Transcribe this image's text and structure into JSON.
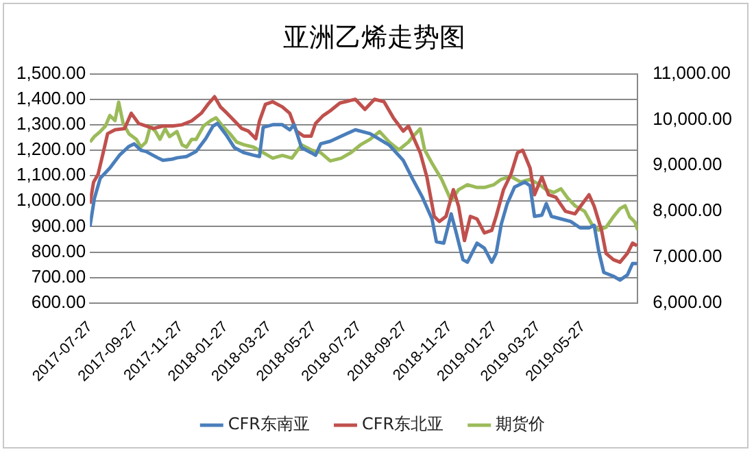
{
  "chart_data": {
    "type": "line",
    "title": "亚洲乙烯走势图",
    "xlim": [
      "2017-07-27",
      "2019-08-09"
    ],
    "xticks": [
      "2017-07-27",
      "2017-09-27",
      "2017-11-27",
      "2018-01-27",
      "2018-03-27",
      "2018-05-27",
      "2018-07-27",
      "2018-09-27",
      "2018-11-27",
      "2019-01-27",
      "2019-03-27",
      "2019-05-27"
    ],
    "ylim": [
      600,
      1500
    ],
    "yticks": [
      {
        "value": 600,
        "label": "600.00"
      },
      {
        "value": 700,
        "label": "700.00"
      },
      {
        "value": 800,
        "label": "800.00"
      },
      {
        "value": 900,
        "label": "900.00"
      },
      {
        "value": 1000,
        "label": "1,000.00"
      },
      {
        "value": 1100,
        "label": "1,100.00"
      },
      {
        "value": 1200,
        "label": "1,200.00"
      },
      {
        "value": 1300,
        "label": "1,300.00"
      },
      {
        "value": 1400,
        "label": "1,400.00"
      },
      {
        "value": 1500,
        "label": "1,500.00"
      }
    ],
    "y2lim": [
      6000,
      11000
    ],
    "y2ticks": [
      {
        "value": 6000,
        "label": "6,000.00"
      },
      {
        "value": 7000,
        "label": "7,000.00"
      },
      {
        "value": 8000,
        "label": "8,000.00"
      },
      {
        "value": 9000,
        "label": "9,000.00"
      },
      {
        "value": 10000,
        "label": "10,000.00"
      },
      {
        "value": 11000,
        "label": "11,000.00"
      }
    ],
    "grid": "y",
    "legend": "bottom",
    "marker": "none",
    "line_style": "solid",
    "series": [
      {
        "name": "CFR东南亚",
        "color": "#4a7ebb",
        "x": [
          "2017-07-27",
          "2017-08-02",
          "2017-08-10",
          "2017-08-23",
          "2017-09-05",
          "2017-09-18",
          "2017-09-25",
          "2017-10-04",
          "2017-10-11",
          "2017-10-27",
          "2017-11-03",
          "2017-11-16",
          "2017-11-22",
          "2017-12-05",
          "2017-12-18",
          "2017-12-31",
          "2018-01-10",
          "2018-01-16",
          "2018-01-29",
          "2018-02-08",
          "2018-02-21",
          "2018-03-06",
          "2018-03-14",
          "2018-03-19",
          "2018-04-01",
          "2018-04-14",
          "2018-04-24",
          "2018-04-30",
          "2018-05-10",
          "2018-05-23",
          "2018-05-29",
          "2018-06-05",
          "2018-06-18",
          "2018-07-03",
          "2018-07-22",
          "2018-08-11",
          "2018-09-06",
          "2018-09-25",
          "2018-10-08",
          "2018-10-21",
          "2018-11-03",
          "2018-11-09",
          "2018-11-19",
          "2018-11-29",
          "2018-12-05",
          "2018-12-15",
          "2018-12-21",
          "2019-01-03",
          "2019-01-13",
          "2019-01-23",
          "2019-01-29",
          "2019-02-05",
          "2019-02-13",
          "2019-02-23",
          "2019-03-09",
          "2019-03-16",
          "2019-03-22",
          "2019-04-01",
          "2019-04-07",
          "2019-04-14",
          "2019-04-27",
          "2019-05-10",
          "2019-05-23",
          "2019-06-04",
          "2019-06-11",
          "2019-06-17",
          "2019-06-24",
          "2019-07-07",
          "2019-07-16",
          "2019-07-26",
          "2019-08-02",
          "2019-08-08"
        ],
        "values": [
          900,
          1010,
          1090,
          1130,
          1180,
          1215,
          1225,
          1200,
          1195,
          1170,
          1160,
          1165,
          1170,
          1175,
          1195,
          1245,
          1295,
          1305,
          1255,
          1210,
          1190,
          1180,
          1175,
          1290,
          1300,
          1300,
          1280,
          1300,
          1210,
          1190,
          1180,
          1225,
          1235,
          1255,
          1280,
          1265,
          1220,
          1160,
          1085,
          1015,
          930,
          840,
          835,
          950,
          885,
          770,
          760,
          835,
          815,
          760,
          795,
          910,
          990,
          1055,
          1075,
          1060,
          940,
          945,
          990,
          940,
          930,
          920,
          895,
          895,
          905,
          805,
          720,
          705,
          690,
          710,
          755,
          755
        ]
      },
      {
        "name": "CFR东北亚",
        "color": "#c0504d",
        "x": [
          "2017-07-27",
          "2017-08-01",
          "2017-08-07",
          "2017-08-14",
          "2017-08-20",
          "2017-08-30",
          "2017-09-12",
          "2017-09-21",
          "2017-10-01",
          "2017-10-11",
          "2017-10-21",
          "2017-11-03",
          "2017-11-16",
          "2017-11-29",
          "2017-12-12",
          "2017-12-25",
          "2018-01-03",
          "2018-01-12",
          "2018-01-20",
          "2018-01-29",
          "2018-02-08",
          "2018-02-18",
          "2018-02-27",
          "2018-03-09",
          "2018-03-14",
          "2018-03-22",
          "2018-04-01",
          "2018-04-14",
          "2018-04-24",
          "2018-05-03",
          "2018-05-13",
          "2018-05-23",
          "2018-05-29",
          "2018-06-08",
          "2018-06-18",
          "2018-07-01",
          "2018-07-22",
          "2018-08-04",
          "2018-08-17",
          "2018-08-30",
          "2018-09-12",
          "2018-09-25",
          "2018-10-02",
          "2018-10-08",
          "2018-10-18",
          "2018-10-27",
          "2018-11-06",
          "2018-11-13",
          "2018-11-22",
          "2018-12-02",
          "2018-12-09",
          "2018-12-17",
          "2018-12-25",
          "2019-01-03",
          "2019-01-13",
          "2019-01-23",
          "2019-01-29",
          "2019-02-08",
          "2019-02-18",
          "2019-02-27",
          "2019-03-06",
          "2019-03-16",
          "2019-03-22",
          "2019-04-01",
          "2019-04-10",
          "2019-04-20",
          "2019-05-03",
          "2019-05-16",
          "2019-05-26",
          "2019-06-04",
          "2019-06-11",
          "2019-06-21",
          "2019-06-27",
          "2019-07-07",
          "2019-07-16",
          "2019-07-26",
          "2019-08-02",
          "2019-08-08"
        ],
        "values": [
          990,
          1075,
          1105,
          1190,
          1265,
          1280,
          1285,
          1345,
          1305,
          1295,
          1285,
          1295,
          1295,
          1300,
          1315,
          1345,
          1380,
          1410,
          1370,
          1345,
          1315,
          1285,
          1275,
          1245,
          1315,
          1380,
          1390,
          1370,
          1345,
          1275,
          1255,
          1255,
          1305,
          1335,
          1355,
          1385,
          1400,
          1360,
          1400,
          1390,
          1325,
          1275,
          1295,
          1255,
          1190,
          1095,
          940,
          920,
          940,
          1045,
          980,
          845,
          940,
          930,
          875,
          885,
          940,
          1045,
          1105,
          1190,
          1200,
          1130,
          1025,
          1095,
          1025,
          1015,
          960,
          950,
          990,
          1025,
          980,
          885,
          795,
          770,
          760,
          795,
          835,
          825
        ]
      },
      {
        "name": "期货价",
        "color": "#9bbb59",
        "axis": "y2",
        "x": [
          "2017-07-27",
          "2017-08-02",
          "2017-08-10",
          "2017-08-17",
          "2017-08-23",
          "2017-08-30",
          "2017-09-04",
          "2017-09-10",
          "2017-09-18",
          "2017-09-28",
          "2017-10-04",
          "2017-10-11",
          "2017-10-17",
          "2017-10-24",
          "2017-10-30",
          "2017-11-06",
          "2017-11-12",
          "2017-11-22",
          "2017-11-29",
          "2017-12-05",
          "2017-12-12",
          "2017-12-18",
          "2017-12-28",
          "2018-01-07",
          "2018-01-14",
          "2018-01-23",
          "2018-02-02",
          "2018-02-11",
          "2018-02-21",
          "2018-03-06",
          "2018-03-19",
          "2018-04-01",
          "2018-04-14",
          "2018-04-27",
          "2018-05-10",
          "2018-05-23",
          "2018-06-05",
          "2018-06-18",
          "2018-07-03",
          "2018-07-16",
          "2018-07-29",
          "2018-08-11",
          "2018-08-24",
          "2018-09-06",
          "2018-09-19",
          "2018-10-02",
          "2018-10-08",
          "2018-10-18",
          "2018-10-24",
          "2018-11-03",
          "2018-11-16",
          "2018-11-29",
          "2018-12-09",
          "2018-12-21",
          "2019-01-03",
          "2019-01-13",
          "2019-01-26",
          "2019-02-05",
          "2019-02-18",
          "2019-03-03",
          "2019-03-16",
          "2019-03-29",
          "2019-04-07",
          "2019-04-17",
          "2019-04-27",
          "2019-05-06",
          "2019-05-16",
          "2019-05-29",
          "2019-06-08",
          "2019-06-17",
          "2019-06-27",
          "2019-07-07",
          "2019-07-16",
          "2019-07-23",
          "2019-07-29",
          "2019-08-05",
          "2019-08-09"
        ],
        "values": [
          9510,
          9630,
          9740,
          9860,
          10090,
          9980,
          10380,
          9920,
          9690,
          9570,
          9400,
          9510,
          9860,
          9740,
          9570,
          9800,
          9630,
          9740,
          9450,
          9400,
          9570,
          9570,
          9860,
          9980,
          10040,
          9860,
          9690,
          9510,
          9450,
          9400,
          9280,
          9160,
          9220,
          9160,
          9450,
          9340,
          9280,
          9100,
          9160,
          9280,
          9450,
          9570,
          9740,
          9510,
          9340,
          9510,
          9630,
          9800,
          9340,
          9050,
          8700,
          8230,
          8470,
          8580,
          8520,
          8520,
          8580,
          8700,
          8760,
          8640,
          8700,
          8580,
          8470,
          8410,
          8490,
          8290,
          8120,
          8000,
          7710,
          7590,
          7650,
          7880,
          8060,
          8120,
          7880,
          7770,
          7590
        ]
      }
    ]
  }
}
